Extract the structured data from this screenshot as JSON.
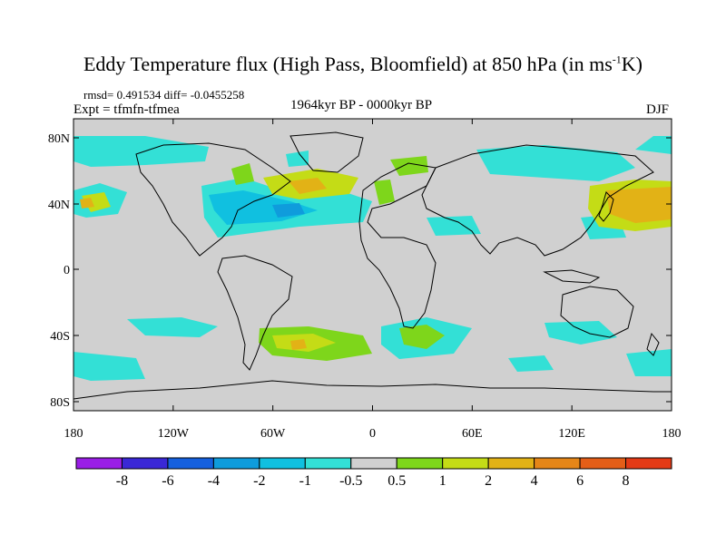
{
  "title": {
    "main": "Eddy Temperature flux (High Pass, Bloomfield) at 850 hPa (in ms",
    "sup": "-1",
    "end": "K)"
  },
  "stats": "rmsd= 0.491534 diff= -0.0455258",
  "expt": "Expt = tfmfn-tfmea",
  "period": "1964kyr BP - 0000kyr BP",
  "season": "DJF",
  "x_ticks": [
    "180",
    "120W",
    "60W",
    "0",
    "60E",
    "120E",
    "180"
  ],
  "y_ticks": [
    "80N",
    "40N",
    "0",
    "40S",
    "80S"
  ],
  "colorbar": {
    "labels": [
      "-8",
      "-6",
      "-4",
      "-2",
      "-1",
      "-0.5",
      "0.5",
      "1",
      "2",
      "4",
      "6",
      "8"
    ],
    "colors": [
      "#9a1ee6",
      "#3a28d6",
      "#1560de",
      "#0f9cdc",
      "#10c0e0",
      "#33e0d6",
      "#d0d0d0",
      "#7ed61b",
      "#c4dc16",
      "#e2b216",
      "#e58618",
      "#e45e18",
      "#e33a16"
    ]
  },
  "map": {
    "ocean_color": "#d0d0d0",
    "coast_color": "#000000"
  }
}
